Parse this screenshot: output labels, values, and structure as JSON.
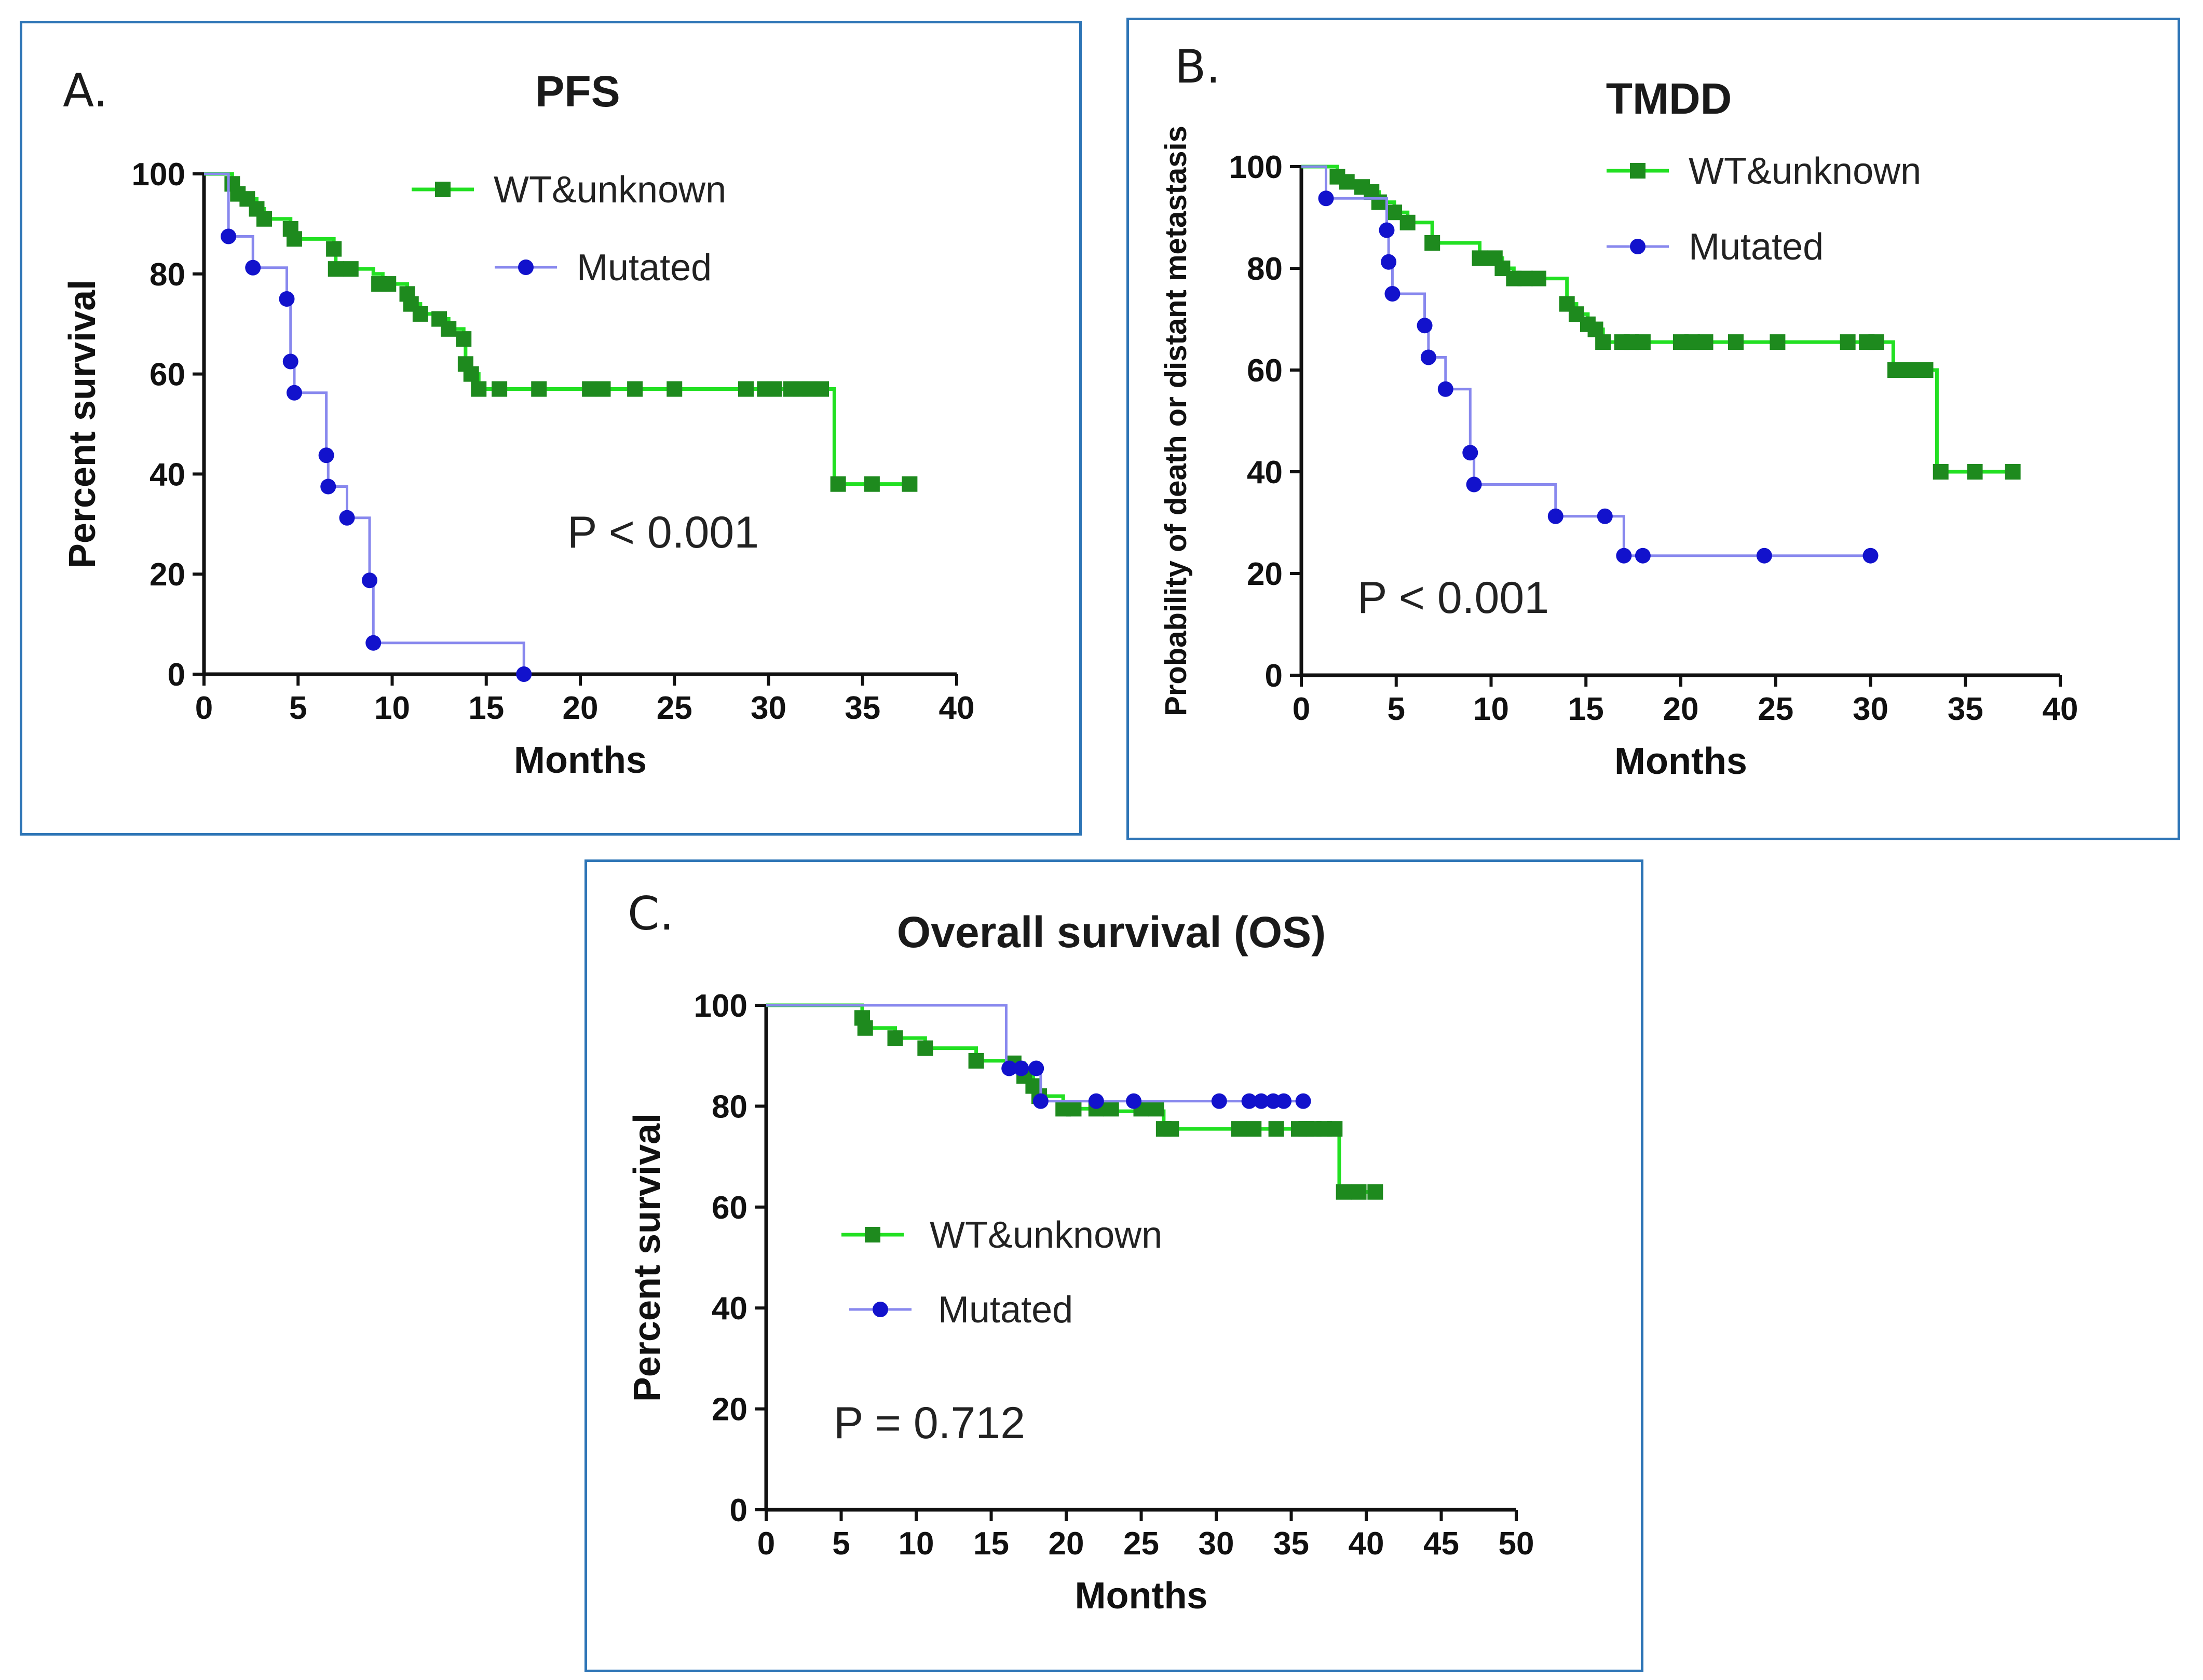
{
  "colors": {
    "wt": "#22e022",
    "wt_marker": "#1e8a1e",
    "mut": "#8888ee",
    "mut_marker": "#1212cc",
    "frame": "#2e75b6"
  },
  "chart_data": [
    {
      "type": "line",
      "panel_letter": "A.",
      "title": "PFS",
      "xlabel": "Months",
      "ylabel": "Percent survival",
      "xlim": [
        0,
        40
      ],
      "ylim": [
        0,
        100
      ],
      "xticks": [
        "0",
        "5",
        "10",
        "15",
        "20",
        "25",
        "30",
        "35",
        "40"
      ],
      "yticks": [
        "0",
        "20",
        "40",
        "60",
        "80",
        "100"
      ],
      "legend": [
        "WT&unknown",
        "Mutated"
      ],
      "annotation": "P < 0.001",
      "series": [
        {
          "name": "WT&unknown",
          "steps": [
            [
              0,
              100
            ],
            [
              1.5,
              98
            ],
            [
              1.8,
              96
            ],
            [
              2.3,
              95
            ],
            [
              2.8,
              93
            ],
            [
              3.2,
              91
            ],
            [
              4.6,
              89
            ],
            [
              4.8,
              87
            ],
            [
              6.9,
              85
            ],
            [
              7.0,
              81
            ],
            [
              9.0,
              80
            ],
            [
              9.5,
              78
            ],
            [
              10.8,
              76
            ],
            [
              11.0,
              74
            ],
            [
              11.5,
              72
            ],
            [
              12.5,
              71
            ],
            [
              13.0,
              69
            ],
            [
              13.8,
              67
            ],
            [
              13.9,
              62
            ],
            [
              14.2,
              60
            ],
            [
              14.6,
              57
            ],
            [
              33.5,
              38
            ]
          ],
          "censored": [
            [
              1.5,
              98
            ],
            [
              1.8,
              96
            ],
            [
              2.3,
              95
            ],
            [
              2.8,
              93
            ],
            [
              3.2,
              91
            ],
            [
              4.6,
              89
            ],
            [
              4.8,
              87
            ],
            [
              6.9,
              85
            ],
            [
              7.0,
              81
            ],
            [
              7.8,
              81
            ],
            [
              9.3,
              78
            ],
            [
              9.8,
              78
            ],
            [
              10.8,
              76
            ],
            [
              11.0,
              74
            ],
            [
              11.5,
              72
            ],
            [
              12.5,
              71
            ],
            [
              13.0,
              69
            ],
            [
              13.8,
              67
            ],
            [
              13.9,
              62
            ],
            [
              14.2,
              60
            ],
            [
              14.6,
              57
            ],
            [
              15.7,
              57
            ],
            [
              17.8,
              57
            ],
            [
              20.5,
              57
            ],
            [
              21.2,
              57
            ],
            [
              22.9,
              57
            ],
            [
              25.0,
              57
            ],
            [
              28.8,
              57
            ],
            [
              29.8,
              57
            ],
            [
              30.3,
              57
            ],
            [
              31.2,
              57
            ],
            [
              31.7,
              57
            ],
            [
              32.2,
              57
            ],
            [
              32.8,
              57
            ],
            [
              33.7,
              38
            ],
            [
              35.5,
              38
            ],
            [
              37.5,
              38
            ]
          ],
          "end": 37.5
        },
        {
          "name": "Mutated",
          "steps": [
            [
              0,
              100
            ],
            [
              1.3,
              87.5
            ],
            [
              2.6,
              81.25
            ],
            [
              4.4,
              75
            ],
            [
              4.6,
              62.5
            ],
            [
              4.8,
              56.25
            ],
            [
              6.5,
              43.75
            ],
            [
              6.6,
              37.5
            ],
            [
              7.6,
              31.25
            ],
            [
              8.8,
              18.75
            ],
            [
              9.0,
              6.25
            ],
            [
              17.0,
              0
            ]
          ],
          "events": [
            [
              1.3,
              87.5
            ],
            [
              2.6,
              81.25
            ],
            [
              4.4,
              75
            ],
            [
              4.6,
              62.5
            ],
            [
              4.8,
              56.25
            ],
            [
              6.5,
              43.75
            ],
            [
              6.6,
              37.5
            ],
            [
              7.6,
              31.25
            ],
            [
              8.8,
              18.75
            ],
            [
              9.0,
              6.25
            ],
            [
              17.0,
              0
            ]
          ],
          "end": 17.0
        }
      ]
    },
    {
      "type": "line",
      "panel_letter": "B.",
      "title": "TMDD",
      "xlabel": "Months",
      "ylabel": "Probability of death or distant metastasis",
      "xlim": [
        0,
        40
      ],
      "ylim": [
        0,
        100
      ],
      "xticks": [
        "0",
        "5",
        "10",
        "15",
        "20",
        "25",
        "30",
        "35",
        "40"
      ],
      "yticks": [
        "0",
        "20",
        "40",
        "60",
        "80",
        "100"
      ],
      "legend": [
        "WT&unknown",
        "Mutated"
      ],
      "annotation": "P < 0.001",
      "series": [
        {
          "name": "WT&unknown",
          "steps": [
            [
              0,
              100
            ],
            [
              1.9,
              98
            ],
            [
              2.4,
              97
            ],
            [
              3.2,
              96
            ],
            [
              3.7,
              95
            ],
            [
              4.1,
              93
            ],
            [
              4.9,
              91
            ],
            [
              5.6,
              89
            ],
            [
              6.9,
              85
            ],
            [
              9.4,
              82
            ],
            [
              10.6,
              80
            ],
            [
              11.2,
              78
            ],
            [
              14.0,
              73
            ],
            [
              14.5,
              71
            ],
            [
              15.1,
              69
            ],
            [
              15.5,
              68
            ],
            [
              15.9,
              65.5
            ],
            [
              31.2,
              60
            ],
            [
              33.5,
              40
            ]
          ],
          "censored": [
            [
              1.9,
              98
            ],
            [
              2.4,
              97
            ],
            [
              3.2,
              96
            ],
            [
              3.7,
              95
            ],
            [
              4.1,
              93
            ],
            [
              4.9,
              91
            ],
            [
              5.6,
              89
            ],
            [
              6.9,
              85
            ],
            [
              9.4,
              82
            ],
            [
              10.2,
              82
            ],
            [
              10.6,
              80
            ],
            [
              11.2,
              78
            ],
            [
              11.8,
              78
            ],
            [
              12.5,
              78
            ],
            [
              14.0,
              73
            ],
            [
              14.5,
              71
            ],
            [
              15.1,
              69
            ],
            [
              15.5,
              68
            ],
            [
              15.9,
              65.5
            ],
            [
              16.9,
              65.5
            ],
            [
              17.4,
              65.5
            ],
            [
              18.0,
              65.5
            ],
            [
              20.0,
              65.5
            ],
            [
              20.6,
              65.5
            ],
            [
              21.3,
              65.5
            ],
            [
              22.9,
              65.5
            ],
            [
              25.1,
              65.5
            ],
            [
              28.8,
              65.5
            ],
            [
              29.8,
              65.5
            ],
            [
              30.3,
              65.5
            ],
            [
              31.3,
              60
            ],
            [
              31.8,
              60
            ],
            [
              32.3,
              60
            ],
            [
              32.9,
              60
            ],
            [
              33.7,
              40
            ],
            [
              35.5,
              40
            ],
            [
              37.5,
              40
            ]
          ],
          "end": 37.5
        },
        {
          "name": "Mutated",
          "steps": [
            [
              0,
              100
            ],
            [
              1.3,
              93.75
            ],
            [
              4.5,
              87.5
            ],
            [
              4.6,
              81.25
            ],
            [
              4.8,
              75
            ],
            [
              6.5,
              68.75
            ],
            [
              6.7,
              62.5
            ],
            [
              7.6,
              56.25
            ],
            [
              8.9,
              43.75
            ],
            [
              9.1,
              37.5
            ],
            [
              13.4,
              31.25
            ],
            [
              17.0,
              23.5
            ]
          ],
          "events": [
            [
              1.3,
              93.75
            ],
            [
              4.5,
              87.5
            ],
            [
              4.6,
              81.25
            ],
            [
              4.8,
              75
            ],
            [
              6.5,
              68.75
            ],
            [
              6.7,
              62.5
            ],
            [
              7.6,
              56.25
            ],
            [
              8.9,
              43.75
            ],
            [
              9.1,
              37.5
            ],
            [
              13.4,
              31.25
            ],
            [
              16.0,
              31.25
            ],
            [
              17.0,
              23.5
            ],
            [
              18.0,
              23.5
            ],
            [
              24.4,
              23.5
            ],
            [
              30.0,
              23.5
            ]
          ],
          "end": 30.0
        }
      ]
    },
    {
      "type": "line",
      "panel_letter": "C.",
      "title": "Overall survival (OS)",
      "xlabel": "Months",
      "ylabel": "Percent survival",
      "xlim": [
        0,
        50
      ],
      "ylim": [
        0,
        100
      ],
      "xticks": [
        "0",
        "5",
        "10",
        "15",
        "20",
        "25",
        "30",
        "35",
        "40",
        "45",
        "50"
      ],
      "yticks": [
        "0",
        "20",
        "40",
        "60",
        "80",
        "100"
      ],
      "legend": [
        "WT&unknown",
        "Mutated"
      ],
      "annotation": "P = 0.712",
      "series": [
        {
          "name": "WT&unknown",
          "steps": [
            [
              0,
              100
            ],
            [
              6.4,
              97.5
            ],
            [
              6.6,
              95.5
            ],
            [
              8.6,
              93.5
            ],
            [
              10.6,
              91.5
            ],
            [
              14.0,
              89
            ],
            [
              16.5,
              88.5
            ],
            [
              17.2,
              86
            ],
            [
              17.8,
              84
            ],
            [
              18.2,
              82
            ],
            [
              19.8,
              79.5
            ],
            [
              22.5,
              79
            ],
            [
              26.5,
              75.5
            ],
            [
              38.2,
              63
            ]
          ],
          "censored": [
            [
              6.4,
              97.5
            ],
            [
              6.6,
              95.5
            ],
            [
              8.6,
              93.5
            ],
            [
              10.6,
              91.5
            ],
            [
              14.0,
              89
            ],
            [
              16.5,
              88.5
            ],
            [
              17.2,
              86
            ],
            [
              17.8,
              84
            ],
            [
              18.2,
              82
            ],
            [
              19.8,
              79.5
            ],
            [
              20.5,
              79.5
            ],
            [
              22.0,
              79.5
            ],
            [
              23.0,
              79.5
            ],
            [
              25.0,
              79.5
            ],
            [
              26.0,
              79.5
            ],
            [
              26.5,
              75.5
            ],
            [
              27.0,
              75.5
            ],
            [
              31.5,
              75.5
            ],
            [
              32.5,
              75.5
            ],
            [
              34.0,
              75.5
            ],
            [
              35.5,
              75.5
            ],
            [
              36.0,
              75.5
            ],
            [
              36.5,
              75.5
            ],
            [
              37.2,
              75.5
            ],
            [
              37.9,
              75.5
            ],
            [
              38.5,
              63
            ],
            [
              39.5,
              63
            ],
            [
              40.6,
              63
            ]
          ],
          "end": 40.6
        },
        {
          "name": "Mutated",
          "steps": [
            [
              0,
              100
            ],
            [
              16.0,
              87.5
            ],
            [
              18.3,
              81
            ]
          ],
          "events": [
            [
              16.2,
              87.5
            ],
            [
              17.0,
              87.5
            ],
            [
              18.0,
              87.5
            ],
            [
              18.3,
              81
            ],
            [
              22.0,
              81
            ],
            [
              24.5,
              81
            ],
            [
              30.2,
              81
            ],
            [
              32.2,
              81
            ],
            [
              33.0,
              81
            ],
            [
              33.8,
              81
            ],
            [
              34.5,
              81
            ],
            [
              35.8,
              81
            ]
          ],
          "end": 35.8
        }
      ]
    }
  ]
}
